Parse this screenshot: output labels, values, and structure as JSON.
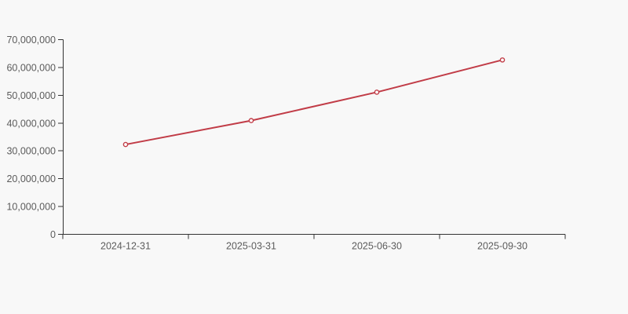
{
  "chart_data": {
    "type": "line",
    "categories": [
      "2024-12-31",
      "2025-03-31",
      "2025-06-30",
      "2025-09-30"
    ],
    "series": [
      {
        "name": "value",
        "values": [
          32300000,
          40900000,
          51100000,
          62700000
        ]
      }
    ],
    "title": "",
    "xlabel": "",
    "ylabel": "",
    "ylim": [
      0,
      70000000
    ],
    "y_tick_step": 10000000,
    "y_tick_labels": [
      "0",
      "10,000,000",
      "20,000,000",
      "30,000,000",
      "40,000,000",
      "50,000,000",
      "60,000,000",
      "70,000,000"
    ],
    "grid": false,
    "legend": false,
    "marker": "open-circle",
    "colors": {
      "line": "#c13c47",
      "marker_fill": "#ffffff",
      "axis": "#333333",
      "tick_label": "#5c5c5c",
      "background": "#f8f8f8"
    }
  }
}
